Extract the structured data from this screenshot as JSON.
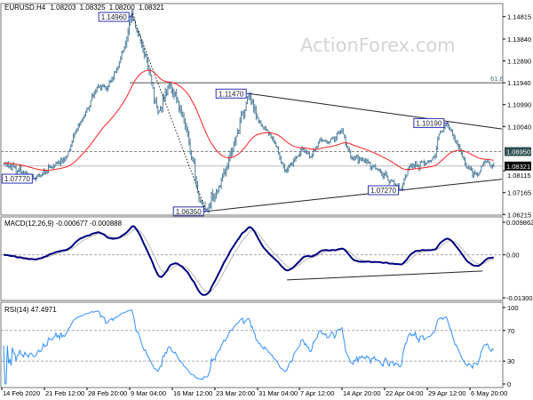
{
  "header": {
    "symbol": "EURUSD.H4",
    "open": "1.08203",
    "high": "1.08325",
    "low": "1.08200",
    "close": "1.08321"
  },
  "watermark": "ActionForex.com",
  "colors": {
    "bars": "#4f7f9c",
    "moving_average": "#ff2020",
    "macd": "#00007f",
    "macd_signal": "#b8b8b8",
    "rsi": "#2f8fff",
    "swing_label_border": "#3030b0",
    "current_price_bg": "#000000",
    "level_bg": "#2f4f4f"
  },
  "chart_data": [
    {
      "type": "candlestick",
      "panel": "price",
      "ylim": [
        1.0619,
        1.1534
      ],
      "y_ticks": [
        "1.14815",
        "1.13840",
        "1.12890",
        "1.11940",
        "1.10990",
        "1.10040",
        "1.08115",
        "1.07165",
        "1.06215"
      ],
      "x_ticks": [
        {
          "label": "14 Feb 2020",
          "time": "2020-02-14 00:00"
        },
        {
          "label": "21 Feb 12:00",
          "time": "2020-02-21 12:00"
        },
        {
          "label": "28 Feb 20:00",
          "time": "2020-02-28 20:00"
        },
        {
          "label": "9 Mar 04:00",
          "time": "2020-03-09 04:00"
        },
        {
          "label": "16 Mar 12:00",
          "time": "2020-03-16 12:00"
        },
        {
          "label": "23 Mar 20:00",
          "time": "2020-03-23 20:00"
        },
        {
          "label": "31 Mar 04:00",
          "time": "2020-03-31 04:00"
        },
        {
          "label": "7 Apr 12:00",
          "time": "2020-04-07 12:00"
        },
        {
          "label": "14 Apr 20:00",
          "time": "2020-04-14 20:00"
        },
        {
          "label": "22 Apr 04:00",
          "time": "2020-04-22 04:00"
        },
        {
          "label": "29 Apr 12:00",
          "time": "2020-04-29 12:00"
        },
        {
          "label": "6 May 20:00",
          "time": "2020-05-06 20:00"
        }
      ],
      "price_path": [
        [
          "2020-02-14 08:00",
          1.0845
        ],
        [
          "2020-02-19 20:00",
          1.0777
        ],
        [
          "2020-02-23 00:00",
          1.0832
        ],
        [
          "2020-02-25 08:00",
          1.087
        ],
        [
          "2020-02-26 20:00",
          1.0986
        ],
        [
          "2020-02-28 08:00",
          1.1052
        ],
        [
          "2020-03-02 04:00",
          1.118
        ],
        [
          "2020-03-04 04:00",
          1.1168
        ],
        [
          "2020-03-06 16:00",
          1.1264
        ],
        [
          "2020-03-08 16:00",
          1.14
        ],
        [
          "2020-03-09 12:00",
          1.1496
        ],
        [
          "2020-03-11 00:00",
          1.138
        ],
        [
          "2020-03-12 12:00",
          1.125
        ],
        [
          "2020-03-14 00:00",
          1.106
        ],
        [
          "2020-03-16 00:00",
          1.119
        ],
        [
          "2020-03-17 08:00",
          1.1118
        ],
        [
          "2020-03-19 00:00",
          1.0986
        ],
        [
          "2020-03-21 04:00",
          1.068
        ],
        [
          "2020-03-22 08:00",
          1.0635
        ],
        [
          "2020-03-24 08:00",
          1.0731
        ],
        [
          "2020-03-25 20:00",
          1.082
        ],
        [
          "2020-03-27 08:00",
          1.0947
        ],
        [
          "2020-03-29 16:00",
          1.1147
        ],
        [
          "2020-03-31 08:00",
          1.1025
        ],
        [
          "2020-04-01 20:00",
          1.0986
        ],
        [
          "2020-04-03 08:00",
          1.0924
        ],
        [
          "2020-04-05 00:00",
          1.0808
        ],
        [
          "2020-04-07 00:00",
          1.087
        ],
        [
          "2020-04-08 00:00",
          1.091
        ],
        [
          "2020-04-09 12:00",
          1.087
        ],
        [
          "2020-04-11 00:00",
          1.0947
        ],
        [
          "2020-04-12 12:00",
          1.0935
        ],
        [
          "2020-04-14 20:00",
          1.0986
        ],
        [
          "2020-04-16 08:00",
          1.087
        ],
        [
          "2020-04-18 16:00",
          1.0855
        ],
        [
          "2020-04-21 00:00",
          1.0817
        ],
        [
          "2020-04-25 00:00",
          1.0727
        ],
        [
          "2020-04-26 08:00",
          1.083
        ],
        [
          "2020-04-29 08:00",
          1.0845
        ],
        [
          "2020-04-30 20:00",
          1.087
        ],
        [
          "2020-05-01 08:00",
          1.096
        ],
        [
          "2020-05-02 20:00",
          1.1019
        ],
        [
          "2020-05-04 00:00",
          1.096
        ],
        [
          "2020-05-05 04:00",
          1.09
        ],
        [
          "2020-05-06 04:00",
          1.083
        ],
        [
          "2020-05-08 04:00",
          1.0792
        ],
        [
          "2020-05-09 08:00",
          1.0855
        ],
        [
          "2020-05-11 00:00",
          1.08321
        ]
      ],
      "moving_average": {
        "type": "ema",
        "period": 55
      },
      "levels": [
        {
          "price": 1.0895,
          "label": "1.08950",
          "style": "dashed"
        },
        {
          "price": 1.08321,
          "label": "1.08321",
          "style": "current"
        }
      ],
      "fibonacci": {
        "label": "61.8",
        "price": 1.1194,
        "from_time": "2020-03-09 04:00"
      },
      "swing_labels": [
        {
          "label": "1.14960",
          "time": "2020-03-09 12:00",
          "price": 1.1496
        },
        {
          "label": "1.07770",
          "time": "2020-02-19 20:00",
          "price": 1.0777
        },
        {
          "label": "1.06350",
          "time": "2020-03-22 08:00",
          "price": 1.0635
        },
        {
          "label": "1.11470",
          "time": "2020-03-29 16:00",
          "price": 1.1147
        },
        {
          "label": "1.10190",
          "time": "2020-05-02 20:00",
          "price": 1.1019
        },
        {
          "label": "1.07270",
          "time": "2020-04-25 00:00",
          "price": 1.0727
        }
      ],
      "trendlines": [
        {
          "from": [
            "2020-03-29 16:00",
            1.1147
          ],
          "to": [
            "2020-05-12 08:00",
            1.0993
          ],
          "style": "solid"
        },
        {
          "from": [
            "2020-03-22 08:00",
            1.0635
          ],
          "to": [
            "2020-05-12 08:00",
            1.0775
          ],
          "style": "solid"
        },
        {
          "from": [
            "2020-03-09 12:00",
            1.1496
          ],
          "to": [
            "2020-03-22 08:00",
            1.0635
          ],
          "style": "dotted"
        }
      ]
    },
    {
      "type": "line",
      "panel": "macd",
      "label": "MACD(12,26,9) -0.000677 -0.000888",
      "params": [
        12,
        26,
        9
      ],
      "ylim": [
        -0.013002,
        0.009862
      ],
      "y_ticks": [
        "0.009862",
        "0.00",
        "-0.013002"
      ],
      "zero_line": "dashed",
      "trendline": {
        "from": [
          "2020-04-05 08:00",
          -0.0076
        ],
        "to": [
          "2020-05-09 00:00",
          -0.0049
        ]
      }
    },
    {
      "type": "line",
      "panel": "rsi",
      "label": "RSI(14) 47.4971",
      "period": 14,
      "ylim": [
        0,
        100
      ],
      "y_ticks": [
        "100",
        "70",
        "30",
        "0"
      ],
      "levels": [
        70,
        30
      ]
    }
  ]
}
